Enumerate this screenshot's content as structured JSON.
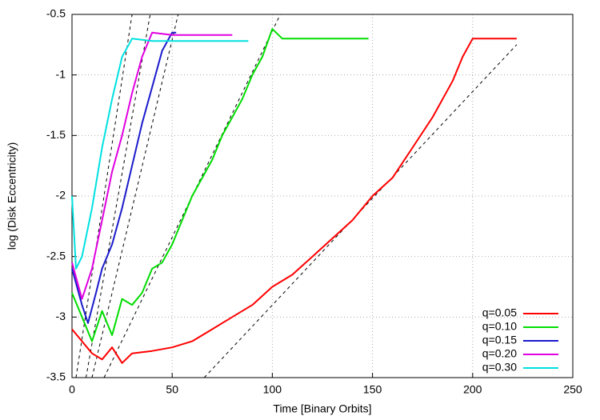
{
  "chart_data": {
    "type": "line",
    "xlabel": "Time [Binary Orbits]",
    "ylabel": "log (Disk Eccentricity)",
    "xlim": [
      0,
      250
    ],
    "xticks": [
      0,
      50,
      100,
      150,
      200,
      250
    ],
    "ylim": [
      -3.5,
      -0.5
    ],
    "yticks": [
      -3.5,
      -3,
      -2.5,
      -2,
      -1.5,
      -1,
      -0.5
    ],
    "grid": true,
    "legend": "lower right",
    "series": [
      {
        "name": "q=0.05",
        "color": "#ff0000",
        "x": [
          0,
          5,
          10,
          15,
          20,
          25,
          30,
          40,
          50,
          60,
          70,
          80,
          90,
          100,
          110,
          120,
          130,
          140,
          150,
          160,
          170,
          180,
          190,
          195,
          200,
          210,
          222
        ],
        "values": [
          -3.1,
          -3.2,
          -3.3,
          -3.35,
          -3.25,
          -3.38,
          -3.3,
          -3.28,
          -3.25,
          -3.2,
          -3.1,
          -3.0,
          -2.9,
          -2.75,
          -2.65,
          -2.5,
          -2.35,
          -2.2,
          -2.0,
          -1.85,
          -1.6,
          -1.35,
          -1.05,
          -0.85,
          -0.7,
          -0.7,
          -0.7
        ]
      },
      {
        "name": "q=0.10",
        "color": "#00dd00",
        "x": [
          0,
          5,
          10,
          15,
          20,
          25,
          30,
          35,
          40,
          45,
          50,
          55,
          60,
          65,
          70,
          75,
          80,
          85,
          90,
          95,
          100,
          105,
          115,
          125,
          135,
          148
        ],
        "values": [
          -2.8,
          -3.0,
          -3.2,
          -2.95,
          -3.15,
          -2.85,
          -2.9,
          -2.8,
          -2.6,
          -2.55,
          -2.4,
          -2.2,
          -2.0,
          -1.85,
          -1.7,
          -1.5,
          -1.35,
          -1.2,
          -1.0,
          -0.85,
          -0.62,
          -0.7,
          -0.7,
          -0.7,
          -0.7,
          -0.7
        ]
      },
      {
        "name": "q=0.15",
        "color": "#1a1acc",
        "x": [
          0,
          5,
          8,
          12,
          15,
          20,
          25,
          30,
          35,
          40,
          45,
          50,
          52
        ],
        "values": [
          -2.6,
          -2.9,
          -3.05,
          -2.8,
          -2.6,
          -2.4,
          -2.1,
          -1.75,
          -1.4,
          -1.1,
          -0.8,
          -0.65,
          -0.65
        ]
      },
      {
        "name": "q=0.20",
        "color": "#e000e0",
        "x": [
          0,
          5,
          10,
          15,
          20,
          25,
          30,
          35,
          40,
          50,
          60,
          70,
          80
        ],
        "values": [
          -2.55,
          -2.85,
          -2.6,
          -2.2,
          -1.8,
          -1.5,
          -1.15,
          -0.85,
          -0.65,
          -0.67,
          -0.67,
          -0.67,
          -0.67
        ]
      },
      {
        "name": "q=0.30",
        "color": "#00e0e0",
        "x": [
          0,
          2,
          5,
          10,
          15,
          20,
          25,
          30,
          40,
          50,
          60,
          70,
          80,
          88
        ],
        "values": [
          -2.0,
          -2.6,
          -2.5,
          -2.1,
          -1.6,
          -1.2,
          -0.85,
          -0.7,
          -0.72,
          -0.72,
          -0.72,
          -0.72,
          -0.72,
          -0.72
        ]
      }
    ],
    "fits": [
      {
        "x": [
          2,
          30
        ],
        "values": [
          -3.5,
          -0.5
        ]
      },
      {
        "x": [
          7,
          39
        ],
        "values": [
          -3.5,
          -0.5
        ]
      },
      {
        "x": [
          10,
          53
        ],
        "values": [
          -3.5,
          -0.5
        ]
      },
      {
        "x": [
          16,
          104
        ],
        "values": [
          -3.5,
          -0.5
        ]
      },
      {
        "x": [
          66,
          222
        ],
        "values": [
          -3.5,
          -0.75
        ]
      }
    ]
  }
}
